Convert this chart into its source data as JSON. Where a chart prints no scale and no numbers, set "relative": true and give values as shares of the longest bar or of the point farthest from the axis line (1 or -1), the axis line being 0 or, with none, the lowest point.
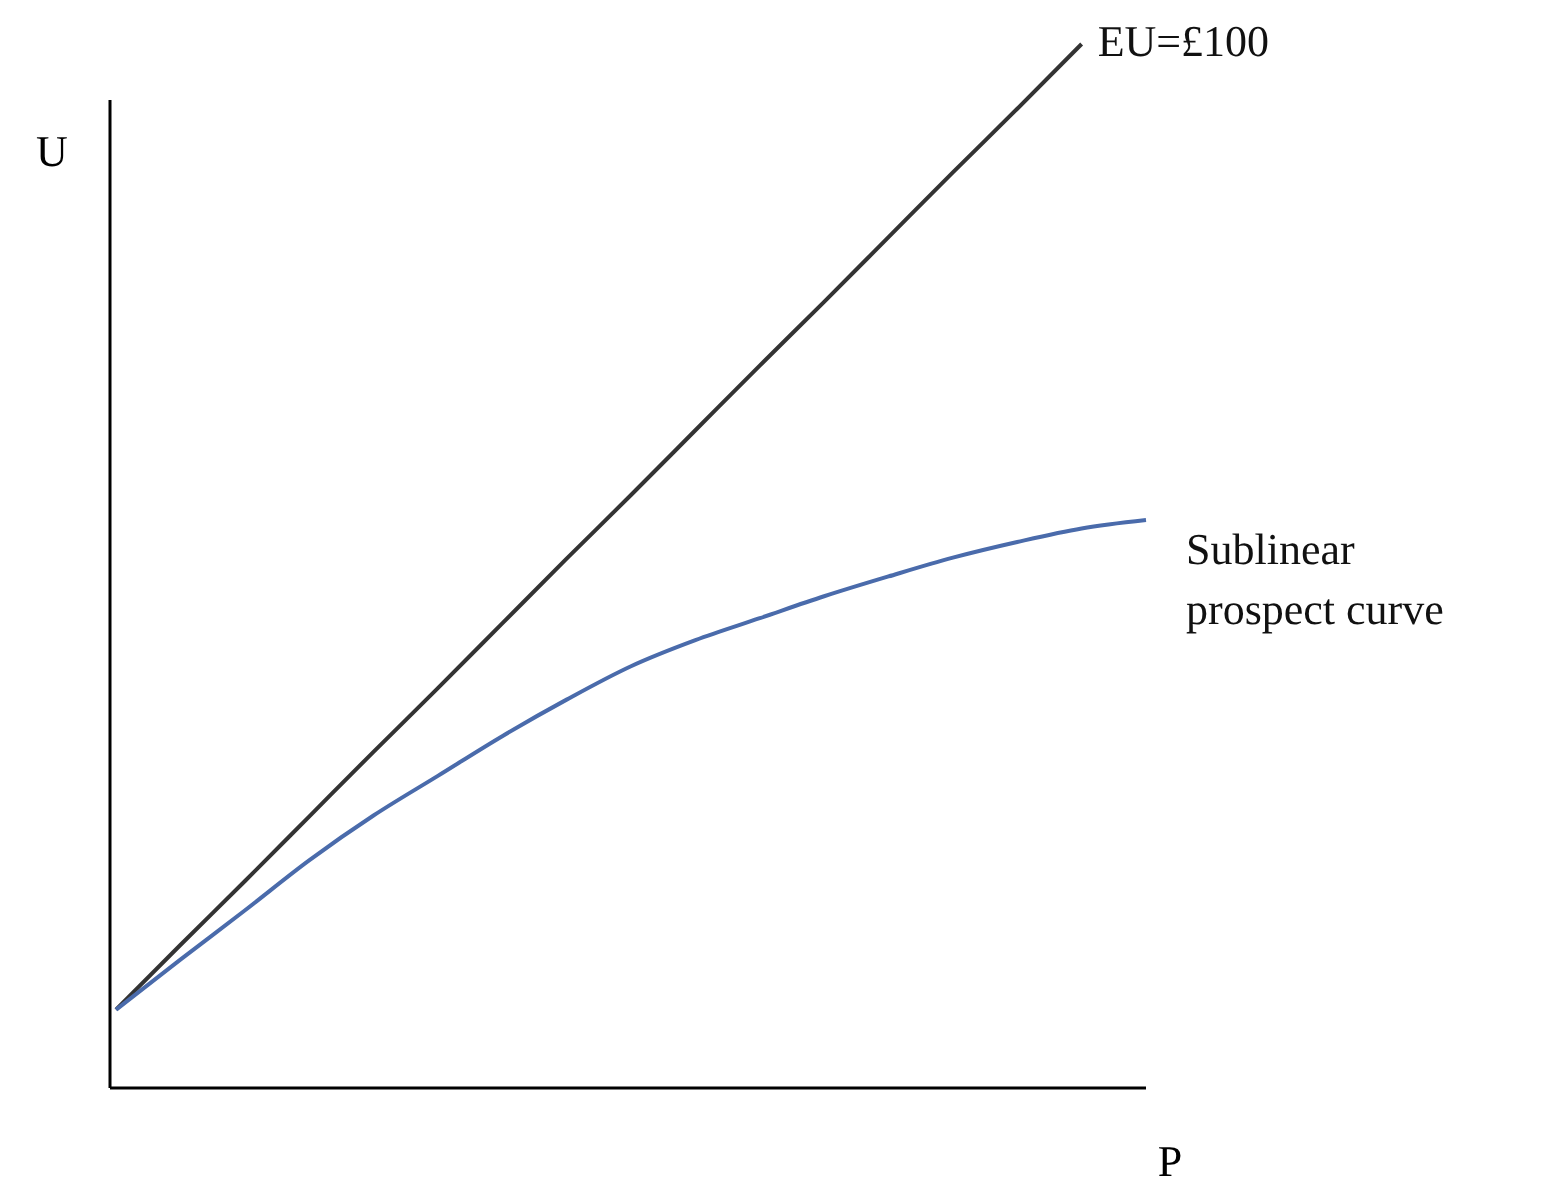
{
  "chart_data": {
    "type": "line",
    "relative": true,
    "xlabel": "P",
    "ylabel": "U",
    "categories": [
      null,
      null,
      null,
      null,
      null,
      null,
      null,
      null,
      null,
      null,
      null,
      null,
      null,
      null,
      null,
      null,
      null
    ],
    "series": [
      {
        "name": "EU=£100",
        "color": "#333333",
        "values": [
          0.075,
          0.137,
          0.198,
          0.26,
          0.322,
          0.383,
          0.445,
          0.507,
          0.568,
          0.63,
          0.692,
          0.753,
          0.815,
          0.877,
          0.938,
          1.0,
          null
        ]
      },
      {
        "name": "Sublinear prospect curve",
        "color": "#4a6bab",
        "values": [
          0.075,
          0.123,
          0.17,
          0.218,
          0.261,
          0.299,
          0.337,
          0.372,
          0.404,
          0.429,
          0.45,
          0.471,
          0.49,
          0.508,
          0.523,
          0.536,
          0.544
        ]
      }
    ],
    "grid": false,
    "marker": "none",
    "line_style": "solid"
  }
}
